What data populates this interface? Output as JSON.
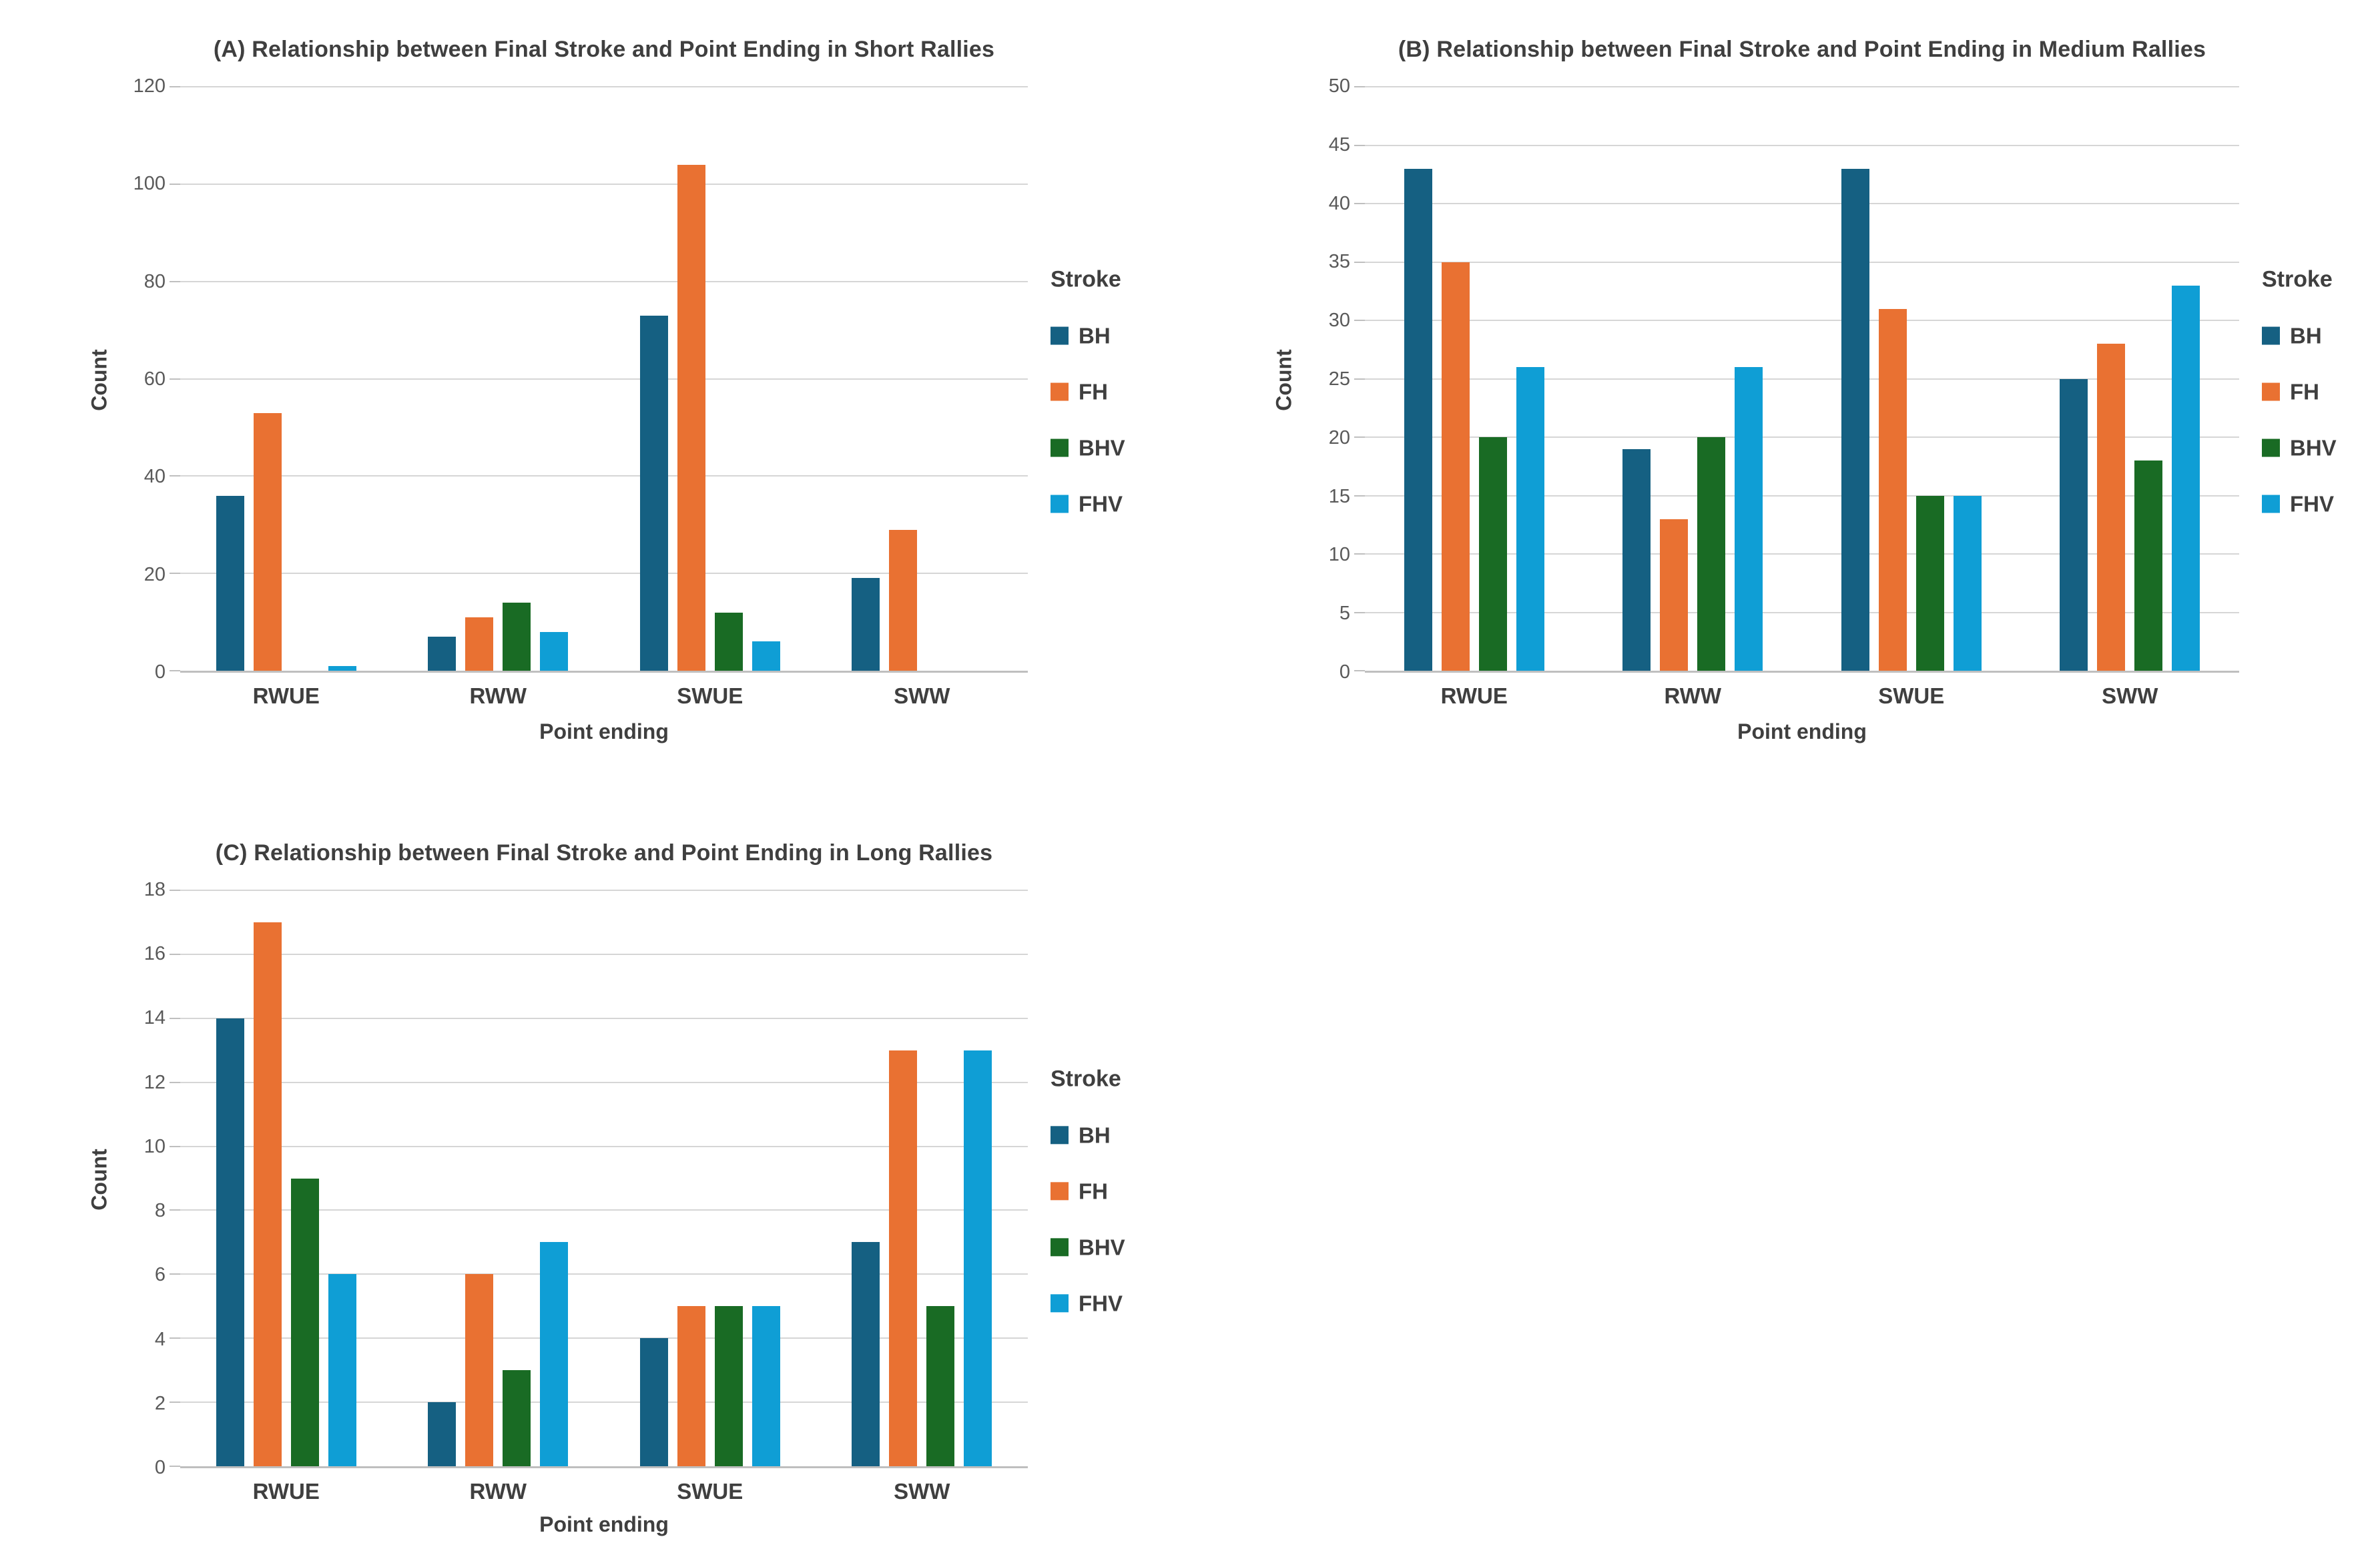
{
  "page": {
    "background": "#ffffff"
  },
  "legend": {
    "title": "Stroke",
    "items": [
      {
        "label": "BH",
        "color": "#156082"
      },
      {
        "label": "FH",
        "color": "#E97132"
      },
      {
        "label": "BHV",
        "color": "#196B24"
      },
      {
        "label": "FHV",
        "color": "#0F9ED5"
      }
    ]
  },
  "style_colors": {
    "gridline": "#d6d6d6",
    "axis_line": "#bfbfbf",
    "tick_text": "#595959",
    "label_text": "#3f3f3f"
  },
  "chart_data": [
    {
      "type": "bar",
      "panel": "A",
      "title": "(A) Relationship between Final Stroke and Point Ending in Short Rallies",
      "xlabel": "Point ending",
      "ylabel": "Count",
      "ylim": [
        0,
        120
      ],
      "yticks": [
        0,
        20,
        40,
        60,
        80,
        100,
        120
      ],
      "grid": "horizontal",
      "legend_position": "right",
      "categories": [
        "RWUE",
        "RWW",
        "SWUE",
        "SWW"
      ],
      "series": [
        {
          "name": "BH",
          "values": [
            36,
            7,
            73,
            19
          ]
        },
        {
          "name": "FH",
          "values": [
            53,
            11,
            104,
            29
          ]
        },
        {
          "name": "BHV",
          "values": [
            0,
            14,
            12,
            0
          ]
        },
        {
          "name": "FHV",
          "values": [
            1,
            8,
            6,
            0
          ]
        }
      ]
    },
    {
      "type": "bar",
      "panel": "B",
      "title": "(B) Relationship between Final Stroke and Point Ending in Medium Rallies",
      "xlabel": "Point ending",
      "ylabel": "Count",
      "ylim": [
        0,
        50
      ],
      "yticks": [
        0,
        5,
        10,
        15,
        20,
        25,
        30,
        35,
        40,
        45,
        50
      ],
      "grid": "horizontal",
      "legend_position": "right",
      "categories": [
        "RWUE",
        "RWW",
        "SWUE",
        "SWW"
      ],
      "series": [
        {
          "name": "BH",
          "values": [
            43,
            19,
            43,
            25
          ]
        },
        {
          "name": "FH",
          "values": [
            35,
            13,
            31,
            28
          ]
        },
        {
          "name": "BHV",
          "values": [
            20,
            20,
            15,
            18
          ]
        },
        {
          "name": "FHV",
          "values": [
            26,
            26,
            15,
            33
          ]
        }
      ]
    },
    {
      "type": "bar",
      "panel": "C",
      "title": "(C) Relationship between Final Stroke and Point Ending in Long Rallies",
      "xlabel": "Point ending",
      "ylabel": "Count",
      "ylim": [
        0,
        18
      ],
      "yticks": [
        0,
        2,
        4,
        6,
        8,
        10,
        12,
        14,
        16,
        18
      ],
      "grid": "horizontal",
      "legend_position": "right",
      "categories": [
        "RWUE",
        "RWW",
        "SWUE",
        "SWW"
      ],
      "series": [
        {
          "name": "BH",
          "values": [
            14,
            2,
            4,
            7
          ]
        },
        {
          "name": "FH",
          "values": [
            17,
            6,
            5,
            13
          ]
        },
        {
          "name": "BHV",
          "values": [
            9,
            3,
            5,
            5
          ]
        },
        {
          "name": "FHV",
          "values": [
            6,
            7,
            5,
            13
          ]
        }
      ]
    }
  ]
}
